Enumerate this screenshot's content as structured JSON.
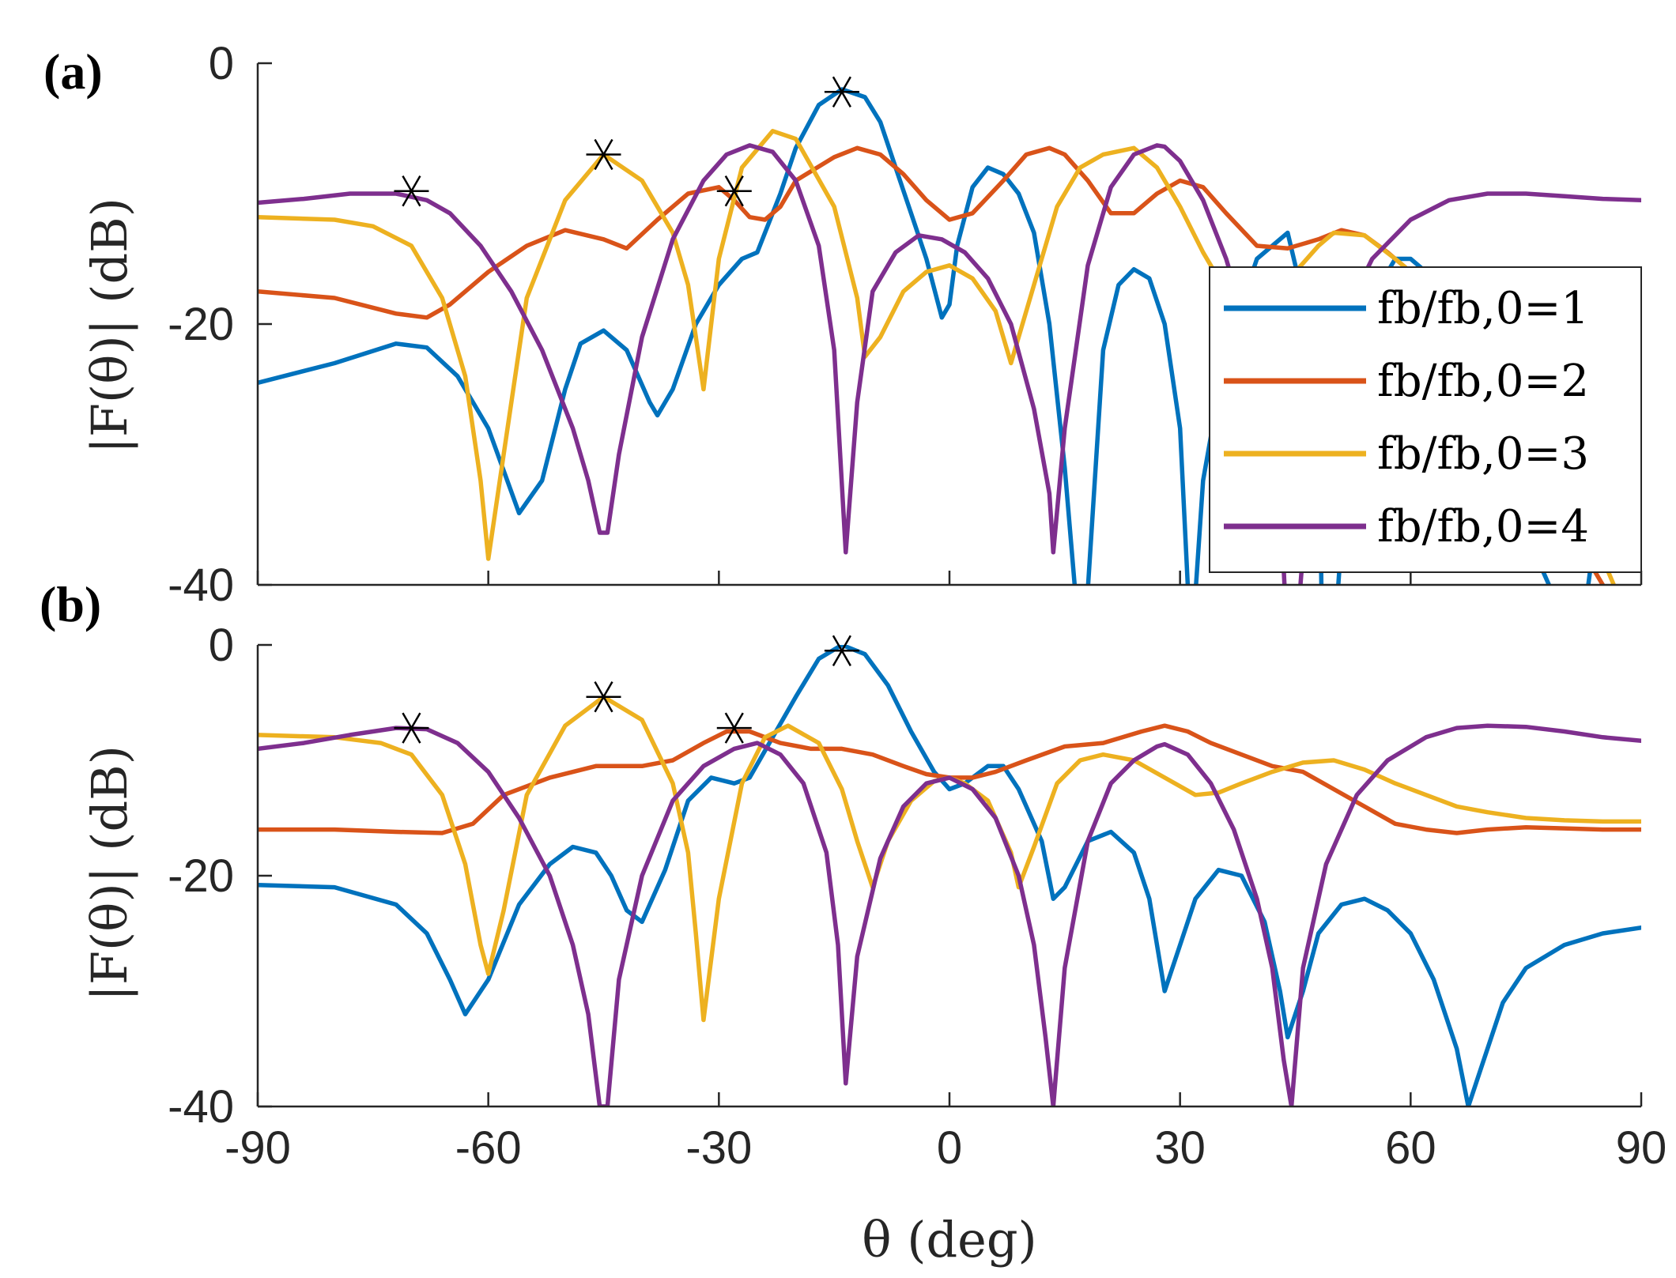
{
  "chart_data": [
    {
      "type": "line",
      "panel_label": "(a)",
      "ylabel": "|F(θ)| (dB)",
      "xlabel": "",
      "xlim": [
        -90,
        90
      ],
      "ylim": [
        -40,
        0
      ],
      "xticks": [
        -90,
        -60,
        -30,
        0,
        30,
        60,
        90
      ],
      "yticks": [
        0,
        -20,
        -40
      ],
      "ytick_labels": [
        "0",
        "-20",
        "-40"
      ],
      "grid": false,
      "legend_position": "inside lower-right",
      "series": [
        {
          "name": "fb/fb,0=1",
          "color": "#0072BD",
          "x": [
            -90,
            -80,
            -72,
            -68,
            -64,
            -60,
            -56,
            -53,
            -50,
            -48,
            -45,
            -42,
            -39,
            -38,
            -36,
            -33,
            -30,
            -27,
            -25,
            -22,
            -20,
            -17,
            -14,
            -11,
            -9,
            -7,
            -5,
            -3,
            -1,
            0,
            1,
            3,
            5,
            7,
            9,
            11,
            13,
            15,
            17,
            17.5,
            20,
            22,
            24,
            26,
            28,
            30,
            31,
            31.5,
            33,
            36,
            40,
            44,
            48,
            48.5,
            50,
            52,
            55,
            58,
            60,
            63,
            66,
            69,
            72,
            75,
            78,
            81,
            82,
            84,
            86,
            88,
            90
          ],
          "y": [
            -24.5,
            -23,
            -21.5,
            -21.8,
            -24,
            -28,
            -34.5,
            -32,
            -25,
            -21.5,
            -20.5,
            -22,
            -26,
            -27,
            -25,
            -20,
            -17,
            -15,
            -14.5,
            -10,
            -6.5,
            -3.2,
            -2,
            -2.6,
            -4.5,
            -8,
            -11.5,
            -15,
            -19.5,
            -18.5,
            -14,
            -9.5,
            -8,
            -8.5,
            -10,
            -13,
            -20,
            -31,
            -45,
            -45,
            -22,
            -17,
            -15.8,
            -16.5,
            -20,
            -28,
            -40,
            -45,
            -32,
            -22,
            -15,
            -13,
            -23,
            -45,
            -45,
            -28,
            -18,
            -15,
            -15,
            -16.5,
            -20,
            -26,
            -32,
            -36,
            -40,
            -45,
            -45,
            -36,
            -30,
            -28,
            -28
          ]
        },
        {
          "name": "fb/fb,0=2",
          "color": "#D95319",
          "x": [
            -90,
            -80,
            -72,
            -68,
            -65,
            -60,
            -55,
            -50,
            -45,
            -42,
            -38,
            -34,
            -30,
            -28,
            -26,
            -24,
            -22,
            -20,
            -15,
            -12,
            -9,
            -6,
            -3,
            0,
            3,
            7,
            10,
            13,
            15,
            18,
            21,
            24,
            27,
            30,
            33,
            36,
            40,
            44,
            48,
            51,
            54,
            57,
            60,
            63,
            66,
            70,
            75,
            80,
            85,
            90
          ],
          "y": [
            -17.5,
            -18,
            -19.2,
            -19.5,
            -18.5,
            -16,
            -14,
            -12.8,
            -13.5,
            -14.2,
            -12,
            -10,
            -9.5,
            -10.5,
            -11.8,
            -12,
            -11,
            -9,
            -7.2,
            -6.5,
            -7,
            -8.5,
            -10.5,
            -12,
            -11.5,
            -9,
            -7,
            -6.5,
            -7,
            -9,
            -11.5,
            -11.5,
            -10,
            -9,
            -9.5,
            -11.5,
            -14,
            -14.2,
            -13.5,
            -12.8,
            -13.2,
            -14.5,
            -16,
            -18.5,
            -21,
            -25,
            -30,
            -35,
            -40,
            -45
          ]
        },
        {
          "name": "fb/fb,0=3",
          "color": "#EDB120",
          "x": [
            -90,
            -80,
            -75,
            -70,
            -66,
            -63,
            -61,
            -60,
            -58,
            -55,
            -50,
            -45,
            -40,
            -36,
            -34,
            -33,
            -32,
            -30,
            -27,
            -23,
            -20,
            -15,
            -12,
            -11,
            -9,
            -6,
            -3,
            0,
            3,
            6,
            8,
            11,
            14,
            17,
            20,
            24,
            27,
            30,
            33,
            36,
            40,
            45,
            48,
            50,
            54,
            58,
            62,
            66,
            70,
            75,
            80,
            85,
            90
          ],
          "y": [
            -11.8,
            -12,
            -12.5,
            -14,
            -18,
            -24,
            -32,
            -38,
            -30,
            -18,
            -10.5,
            -7,
            -9,
            -13,
            -17,
            -21,
            -25,
            -15,
            -8,
            -5.2,
            -5.8,
            -11,
            -18,
            -22.5,
            -21,
            -17.5,
            -16,
            -15.5,
            -16.5,
            -19,
            -23,
            -17,
            -11,
            -8,
            -7,
            -6.5,
            -8,
            -11,
            -14.5,
            -17.5,
            -18,
            -16,
            -14,
            -13,
            -13.2,
            -15,
            -17,
            -20,
            -23,
            -27,
            -32,
            -38,
            -45
          ]
        },
        {
          "name": "fb/fb,0=4",
          "color": "#7E2F8E",
          "x": [
            -90,
            -84,
            -78,
            -72,
            -68,
            -65,
            -61,
            -57,
            -53,
            -49,
            -47,
            -45.5,
            -44.5,
            -43,
            -40,
            -36,
            -32,
            -29,
            -26,
            -23,
            -20,
            -17,
            -15,
            -13.5,
            -12,
            -10,
            -7,
            -4,
            -1,
            2,
            5,
            8,
            11,
            13,
            13.5,
            15,
            18,
            21,
            24,
            27,
            28,
            30,
            33,
            36,
            40,
            43,
            44,
            45,
            47,
            50,
            55,
            60,
            65,
            70,
            75,
            80,
            85,
            90
          ],
          "y": [
            -10.7,
            -10.4,
            -10,
            -10,
            -10.5,
            -11.5,
            -14,
            -17.5,
            -22,
            -28,
            -32,
            -36,
            -36,
            -30,
            -21,
            -13.5,
            -9,
            -7,
            -6.3,
            -6.8,
            -9,
            -14,
            -22,
            -37.5,
            -26,
            -17.5,
            -14.5,
            -13.2,
            -13.5,
            -14.5,
            -16.5,
            -20,
            -26.5,
            -33,
            -37.5,
            -28,
            -15.5,
            -9.5,
            -7,
            -6.3,
            -6.4,
            -7.5,
            -10.5,
            -15,
            -23,
            -33,
            -45,
            -45,
            -30,
            -21,
            -15,
            -12,
            -10.5,
            -10,
            -10,
            -10.2,
            -10.4,
            -10.5
          ]
        }
      ],
      "markers": [
        {
          "x": -70,
          "y": -9.8
        },
        {
          "x": -45,
          "y": -7
        },
        {
          "x": -28,
          "y": -9.8
        },
        {
          "x": -14,
          "y": -2.2
        }
      ]
    },
    {
      "type": "line",
      "panel_label": "(b)",
      "ylabel": "|F(θ)| (dB)",
      "xlabel": "θ (deg)",
      "xlim": [
        -90,
        90
      ],
      "ylim": [
        -40,
        0
      ],
      "xticks": [
        -90,
        -60,
        -30,
        0,
        30,
        60,
        90
      ],
      "xtick_labels": [
        "-90",
        "-60",
        "-30",
        "0",
        "30",
        "60",
        "90"
      ],
      "yticks": [
        0,
        -20,
        -40
      ],
      "ytick_labels": [
        "0",
        "-20",
        "-40"
      ],
      "grid": false,
      "series": [
        {
          "name": "fb/fb,0=1",
          "color": "#0072BD",
          "x": [
            -90,
            -80,
            -72,
            -68,
            -65,
            -63,
            -60,
            -56,
            -52,
            -49,
            -46,
            -44,
            -42,
            -40,
            -37,
            -34,
            -31,
            -28,
            -26,
            -23,
            -20,
            -17,
            -14,
            -11,
            -8,
            -5,
            -2,
            0,
            2,
            5,
            7,
            9,
            12,
            13.5,
            15,
            18,
            21,
            24,
            26,
            27,
            28,
            30,
            32,
            35,
            38,
            41,
            43,
            44,
            46,
            48,
            51,
            54,
            57,
            60,
            63,
            66,
            67.5,
            69,
            72,
            75,
            80,
            85,
            90
          ],
          "y": [
            -20.8,
            -21,
            -22.5,
            -25,
            -29,
            -32,
            -29,
            -22.5,
            -19,
            -17.5,
            -18,
            -20,
            -23,
            -24,
            -19.5,
            -13.5,
            -11.5,
            -12,
            -11.5,
            -8,
            -4.5,
            -1.2,
            0,
            -0.8,
            -3.5,
            -7.5,
            -11,
            -12.5,
            -12,
            -10.5,
            -10.5,
            -12.5,
            -17,
            -22,
            -21,
            -17,
            -16.2,
            -18,
            -22,
            -26,
            -30,
            -26,
            -22,
            -19.5,
            -20,
            -24,
            -30,
            -34,
            -30,
            -25,
            -22.5,
            -22,
            -23,
            -25,
            -29,
            -35,
            -40,
            -37,
            -31,
            -28,
            -26,
            -25,
            -24.5
          ]
        },
        {
          "name": "fb/fb,0=2",
          "color": "#D95319",
          "x": [
            -90,
            -80,
            -72,
            -66,
            -62,
            -58,
            -52,
            -46,
            -40,
            -36,
            -32,
            -29,
            -26,
            -22,
            -18,
            -14,
            -10,
            -6,
            -3,
            0,
            3,
            6,
            10,
            15,
            20,
            25,
            28,
            31,
            34,
            38,
            42,
            46,
            50,
            54,
            58,
            62,
            66,
            70,
            75,
            80,
            85,
            90
          ],
          "y": [
            -16,
            -16,
            -16.2,
            -16.3,
            -15.5,
            -13,
            -11.5,
            -10.5,
            -10.5,
            -10,
            -8.5,
            -7.5,
            -7.5,
            -8.5,
            -9,
            -9,
            -9.5,
            -10.5,
            -11.2,
            -11.5,
            -11.5,
            -11,
            -10,
            -8.8,
            -8.5,
            -7.5,
            -7,
            -7.5,
            -8.5,
            -9.5,
            -10.5,
            -11,
            -12.5,
            -14,
            -15.5,
            -16,
            -16.3,
            -16,
            -15.8,
            -15.9,
            -16,
            -16
          ]
        },
        {
          "name": "fb/fb,0=3",
          "color": "#EDB120",
          "x": [
            -90,
            -80,
            -74,
            -70,
            -66,
            -63,
            -61,
            -60,
            -58,
            -55,
            -50,
            -45,
            -40,
            -36,
            -34,
            -33,
            -32,
            -30,
            -27,
            -24,
            -21,
            -17,
            -14,
            -12,
            -10,
            -8,
            -5,
            -2,
            0,
            2,
            5,
            8,
            9,
            11,
            14,
            17,
            20,
            24,
            28,
            32,
            35,
            38,
            42,
            46,
            50,
            54,
            58,
            62,
            66,
            70,
            75,
            80,
            85,
            90
          ],
          "y": [
            -7.8,
            -8,
            -8.5,
            -9.5,
            -13,
            -19,
            -26,
            -28.5,
            -23,
            -13,
            -7,
            -4.5,
            -6.5,
            -12,
            -18,
            -25,
            -32.5,
            -22,
            -12,
            -8,
            -7,
            -8.5,
            -12.5,
            -17,
            -21,
            -17,
            -13.5,
            -11.8,
            -11.5,
            -12,
            -13.5,
            -18,
            -21,
            -17.5,
            -12,
            -10,
            -9.5,
            -10,
            -11.5,
            -13,
            -12.8,
            -12,
            -11,
            -10.2,
            -10,
            -10.8,
            -12,
            -13,
            -14,
            -14.5,
            -15,
            -15.2,
            -15.3,
            -15.3
          ]
        },
        {
          "name": "fb/fb,0=4",
          "color": "#7E2F8E",
          "x": [
            -90,
            -84,
            -78,
            -72,
            -68,
            -64,
            -60,
            -56,
            -52,
            -49,
            -47,
            -45.5,
            -44.5,
            -43,
            -40,
            -36,
            -32,
            -28,
            -25,
            -22,
            -19,
            -16,
            -14.5,
            -13.5,
            -12,
            -9,
            -6,
            -3,
            0,
            3,
            6,
            9,
            11,
            12.5,
            13.5,
            15,
            18,
            21,
            24,
            27,
            28,
            31,
            34,
            37,
            40,
            42,
            43.5,
            44.5,
            46,
            49,
            53,
            57,
            62,
            66,
            70,
            75,
            80,
            85,
            90
          ],
          "y": [
            -9,
            -8.5,
            -7.8,
            -7.2,
            -7.3,
            -8.5,
            -11,
            -15,
            -20,
            -26,
            -32,
            -40,
            -40,
            -29,
            -20,
            -13.5,
            -10.5,
            -9,
            -8.5,
            -9.5,
            -12,
            -18,
            -26,
            -38,
            -27,
            -18.5,
            -14,
            -12,
            -11.5,
            -12.5,
            -15,
            -20,
            -26,
            -34,
            -40,
            -28,
            -17,
            -12,
            -10,
            -8.8,
            -8.6,
            -9.5,
            -12,
            -16,
            -22,
            -28,
            -36,
            -40,
            -28,
            -19,
            -13,
            -10,
            -8,
            -7.2,
            -7,
            -7.1,
            -7.5,
            -8,
            -8.3
          ]
        }
      ],
      "markers": [
        {
          "x": -70,
          "y": -7.2
        },
        {
          "x": -45,
          "y": -4.5
        },
        {
          "x": -28,
          "y": -7.2
        },
        {
          "x": -14,
          "y": -0.5
        }
      ]
    }
  ]
}
